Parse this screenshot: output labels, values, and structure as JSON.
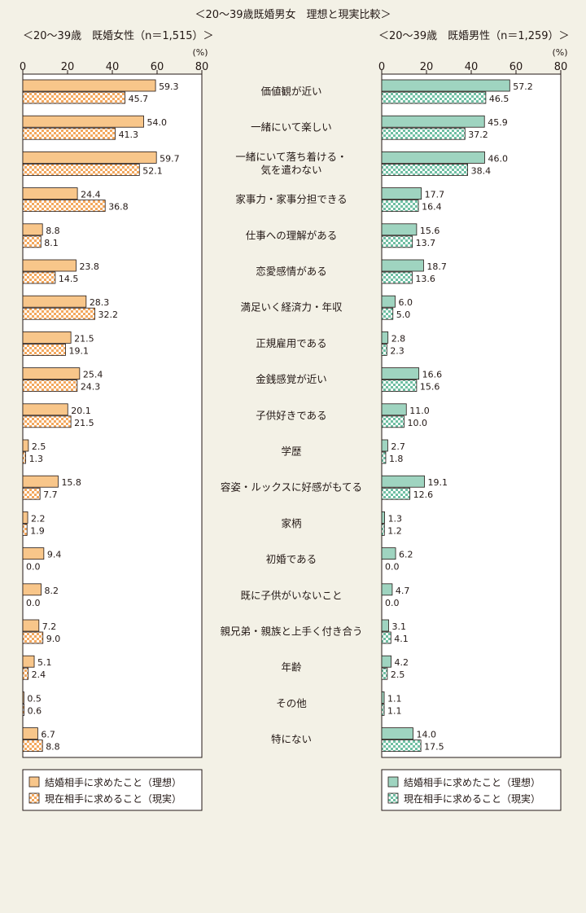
{
  "chart_data": {
    "type": "bar",
    "title": "＜20～39歳既婚男女　理想と現実比較＞",
    "categories": [
      "価値観が近い",
      "一緒にいて楽しい",
      "一緒にいて落ち着ける・\n気を遣わない",
      "家事力・家事分担できる",
      "仕事への理解がある",
      "恋愛感情がある",
      "満足いく経済力・年収",
      "正規雇用である",
      "金銭感覚が近い",
      "子供好きである",
      "学歴",
      "容姿・ルックスに好感がもてる",
      "家柄",
      "初婚である",
      "既に子供がいないこと",
      "親兄弟・親族と上手く付き合う",
      "年齢",
      "その他",
      "特にない"
    ],
    "panels": [
      {
        "subtitle": "＜20～39歳　既婚女性（n＝1,515）＞",
        "unit": "(%)",
        "xlim": [
          0,
          80
        ],
        "ticks": [
          0,
          20,
          40,
          60,
          80
        ],
        "color": "#f8c68a",
        "pattern_color": "#f3a85e",
        "series": [
          {
            "name": "結婚相手に求めたこと（理想）",
            "values": [
              59.3,
              54.0,
              59.7,
              24.4,
              8.8,
              23.8,
              28.3,
              21.5,
              25.4,
              20.1,
              2.5,
              15.8,
              2.2,
              9.4,
              8.2,
              7.2,
              5.1,
              0.5,
              6.7
            ],
            "labels": [
              "59.3",
              "54.0",
              "59.7",
              "24.4",
              "8.8",
              "23.8",
              "28.3",
              "21.5",
              "25.4",
              "20.1",
              "2.5",
              "15.8",
              "2.2",
              "9.4",
              "8.2",
              "7.2",
              "5.1",
              "0.5",
              "6.7"
            ]
          },
          {
            "name": "現在相手に求めること（現実）",
            "values": [
              45.7,
              41.3,
              52.1,
              36.8,
              8.1,
              14.5,
              32.2,
              19.1,
              24.3,
              21.5,
              1.3,
              7.7,
              1.9,
              0.0,
              0.0,
              9.0,
              2.4,
              0.6,
              8.8
            ],
            "labels": [
              "45.7",
              "41.3",
              "52.1",
              "36.8",
              "8.1",
              "14.5",
              "32.2",
              "19.1",
              "24.3",
              "21.5",
              "1.3",
              "7.7",
              "1.9",
              "0.0",
              "0.0",
              "9.0",
              "2.4",
              "0.6",
              "8.8"
            ]
          }
        ]
      },
      {
        "subtitle": "＜20～39歳　既婚男性（n＝1,259）＞",
        "unit": "(%)",
        "xlim": [
          0,
          80
        ],
        "ticks": [
          0,
          20,
          40,
          60,
          80
        ],
        "color": "#9fd4c0",
        "pattern_color": "#6fbfa3",
        "series": [
          {
            "name": "結婚相手に求めたこと（理想）",
            "values": [
              57.2,
              45.9,
              46.0,
              17.7,
              15.6,
              18.7,
              6.0,
              2.8,
              16.6,
              11.0,
              2.7,
              19.1,
              1.3,
              6.2,
              4.7,
              3.1,
              4.2,
              1.1,
              14.0
            ],
            "labels": [
              "57.2",
              "45.9",
              "46.0",
              "17.7",
              "15.6",
              "18.7",
              "6.0",
              "2.8",
              "16.6",
              "11.0",
              "2.7",
              "19.1",
              "1.3",
              "6.2",
              "4.7",
              "3.1",
              "4.2",
              "1.1",
              "14.0"
            ]
          },
          {
            "name": "現在相手に求めること（現実）",
            "values": [
              46.5,
              37.2,
              38.4,
              16.4,
              13.7,
              13.6,
              5.0,
              2.3,
              15.6,
              10.0,
              1.8,
              12.6,
              1.2,
              0.0,
              0.0,
              4.1,
              2.5,
              1.1,
              17.5
            ],
            "labels": [
              "46.5",
              "37.2",
              "38.4",
              "16.4",
              "13.7",
              "13.6",
              "5.0",
              "2.3",
              "15.6",
              "10.0",
              "1.8",
              "12.6",
              "1.2",
              "0.0",
              "0.0",
              "4.1",
              "2.5",
              "1.1",
              "17.5"
            ]
          }
        ]
      }
    ]
  }
}
